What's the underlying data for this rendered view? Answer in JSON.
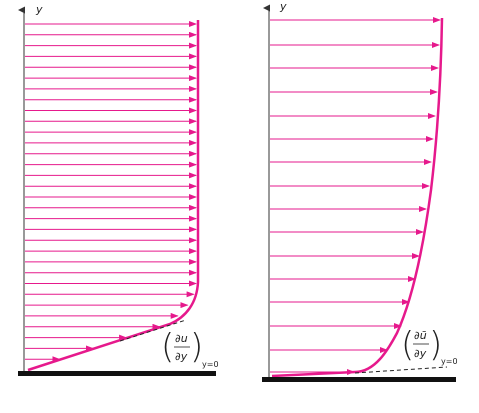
{
  "colors": {
    "curve": "#e6198c",
    "arrow": "#e6198c",
    "wall": "#111111",
    "axis": "#333333",
    "tangent": "#222222"
  },
  "diagrams": [
    {
      "id": "laminar-profile",
      "axis_label": "y",
      "gradient_label": {
        "numerator": "∂u",
        "denominator": "∂y",
        "subscript": "y=0"
      }
    },
    {
      "id": "turbulent-profile",
      "axis_label": "y",
      "gradient_label": {
        "numerator": "∂ū",
        "denominator": "∂y",
        "subscript": "y=0"
      }
    }
  ]
}
